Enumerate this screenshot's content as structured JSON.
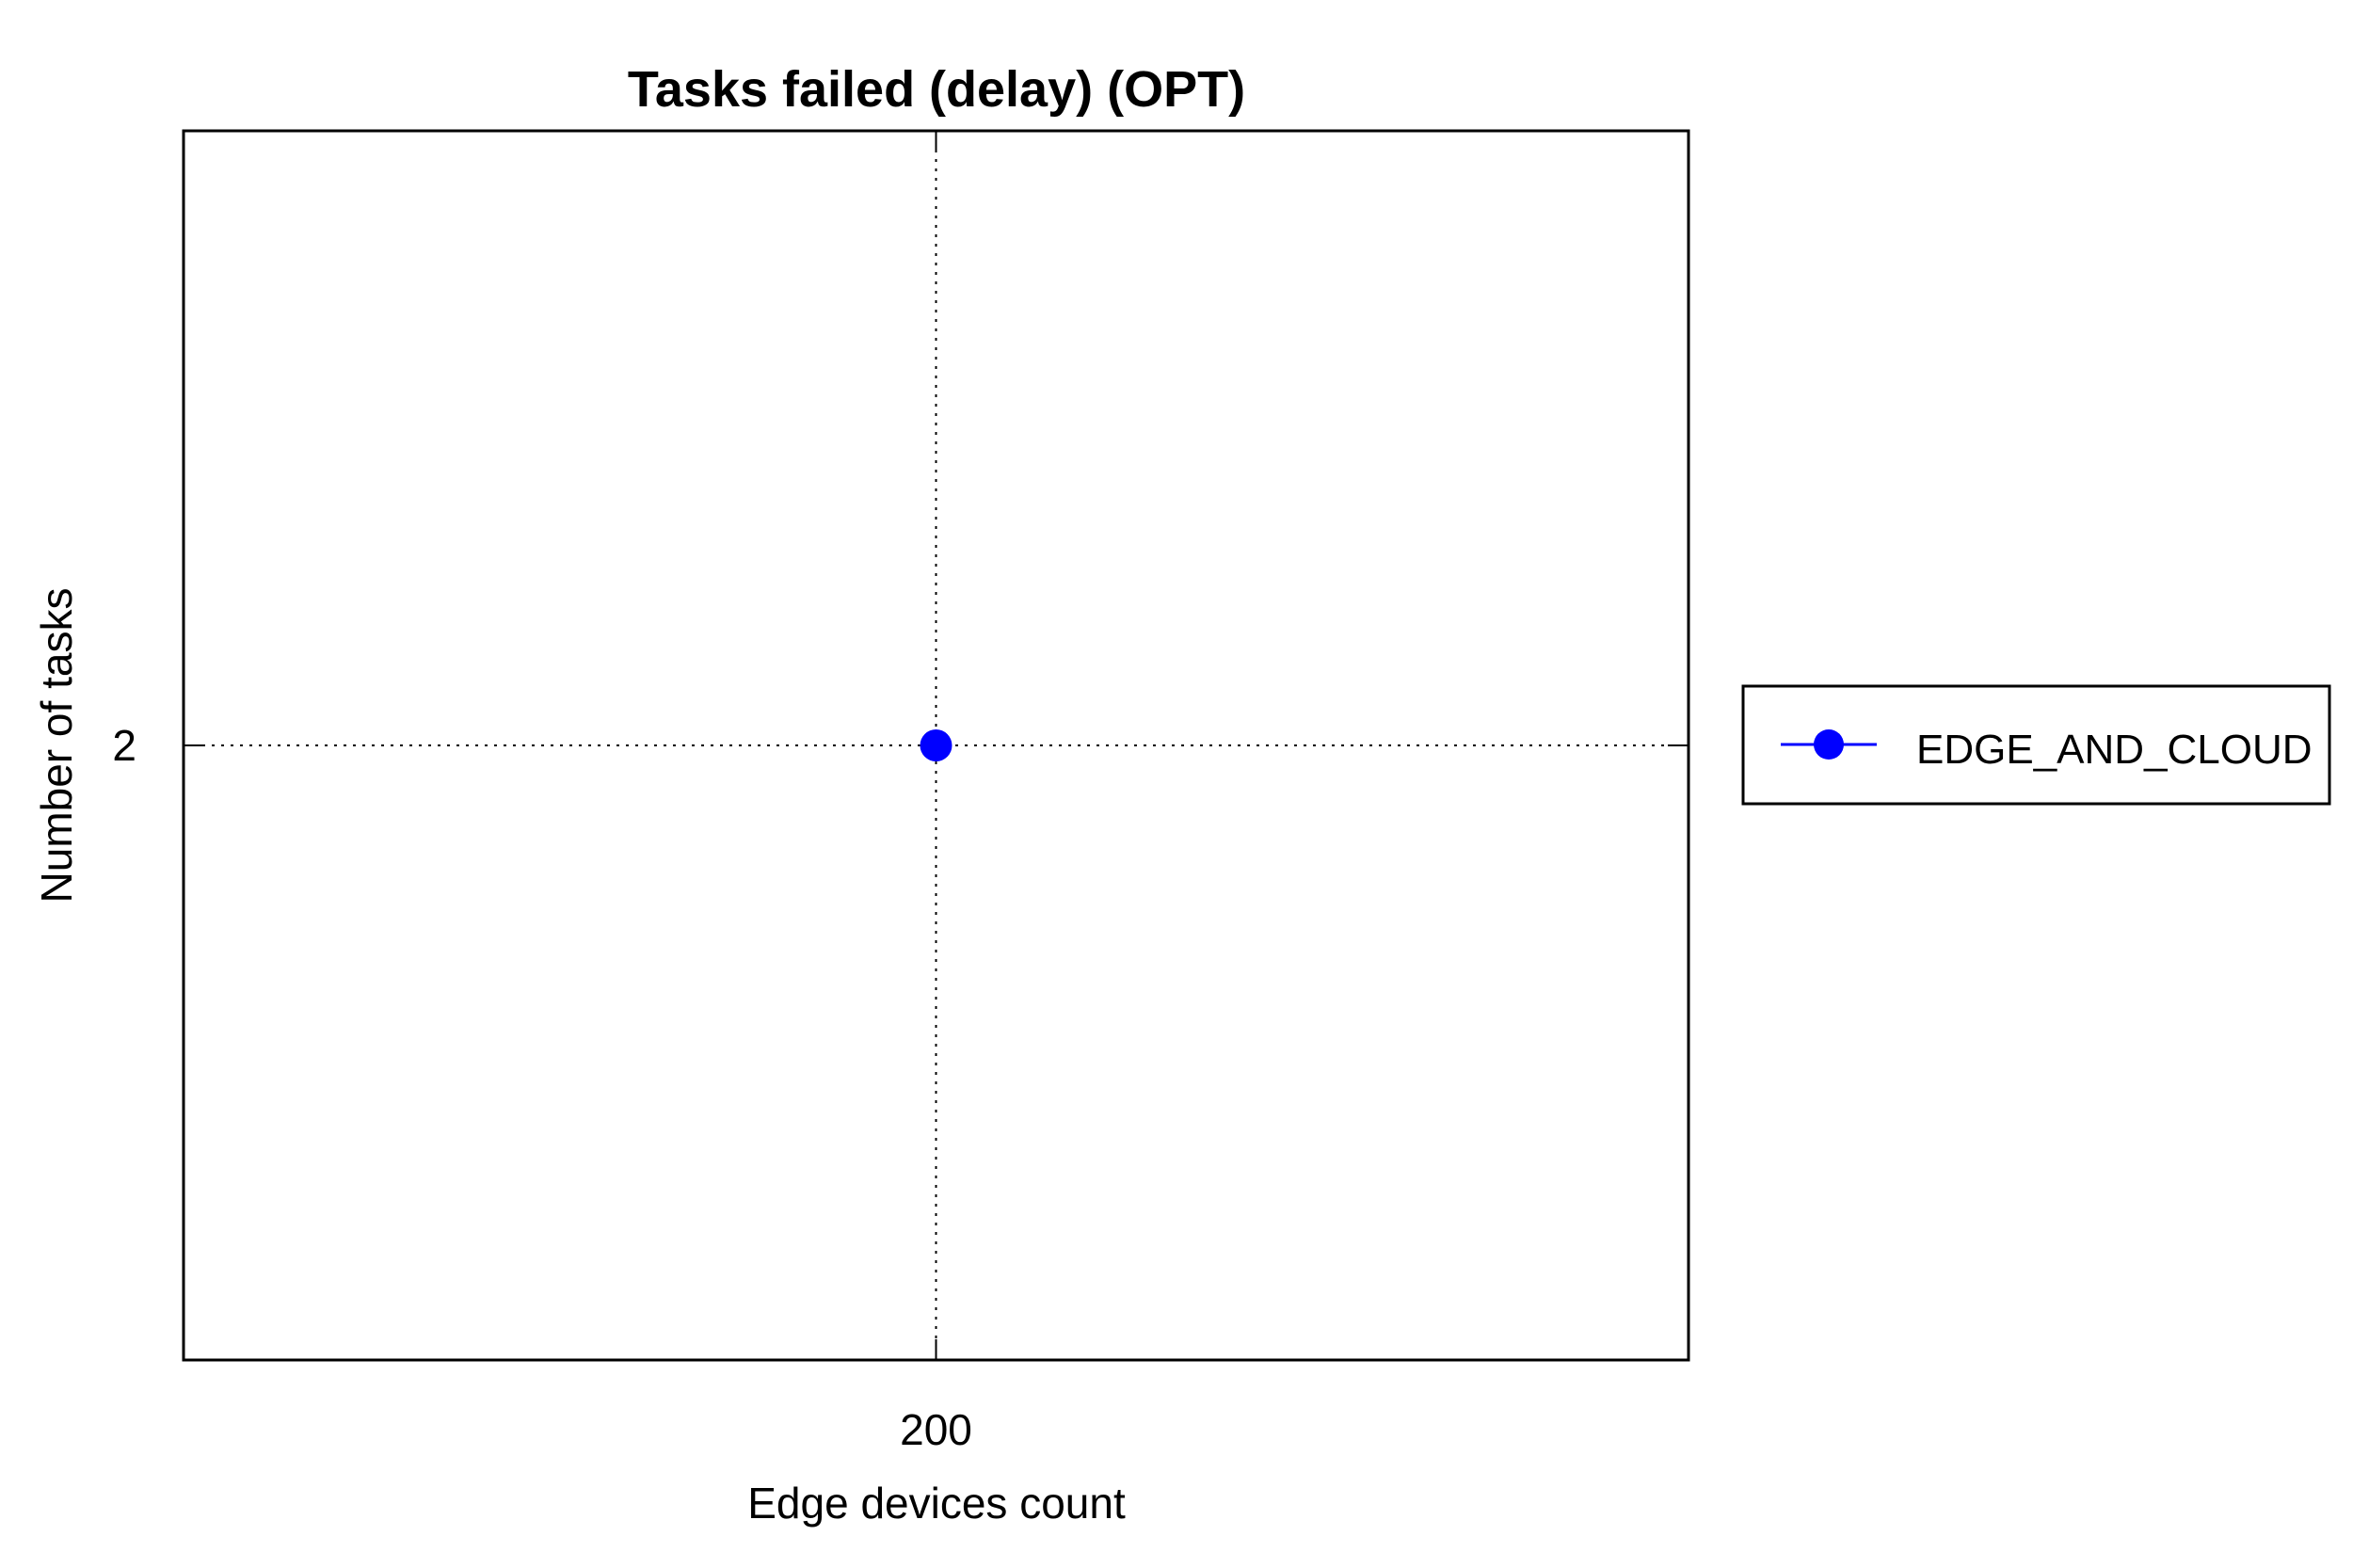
{
  "chart_data": {
    "type": "line",
    "title": "Tasks failed (delay) (OPT)",
    "xlabel": "Edge devices count",
    "ylabel": "Number of tasks",
    "x": [
      200
    ],
    "x_ticks": [
      "200"
    ],
    "y_ticks": [
      "2"
    ],
    "xlim": [
      199,
      201
    ],
    "ylim": [
      1,
      3
    ],
    "y_tick_values": [
      2
    ],
    "grid": true,
    "legend_position": "outside-right",
    "series": [
      {
        "name": "EDGE_AND_CLOUD",
        "x": [
          200
        ],
        "values": [
          2
        ],
        "color": "#0000ff",
        "marker": "circle"
      }
    ]
  },
  "colors": {
    "series": "#0000ff",
    "axes": "#000000",
    "grid": "#000000"
  }
}
